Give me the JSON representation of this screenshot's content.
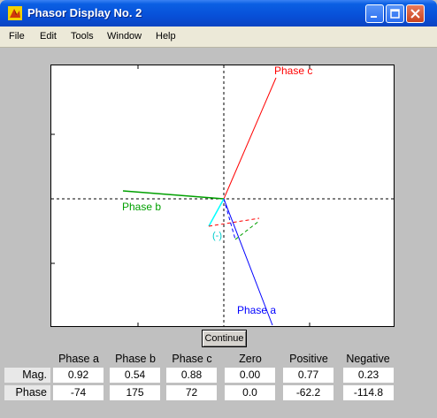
{
  "window": {
    "title": "Phasor Display No. 2"
  },
  "menu": [
    "File",
    "Edit",
    "Tools",
    "Window",
    "Help"
  ],
  "plot": {
    "labels": {
      "phase_a": "Phase a",
      "phase_b": "Phase b",
      "phase_c": "Phase c",
      "minus": "(-)"
    },
    "colors": {
      "phase_a": "#0000ff",
      "phase_b": "#00a000",
      "phase_c": "#ff0000",
      "zero": "#00ffff"
    }
  },
  "button": {
    "continue": "Continue"
  },
  "table": {
    "headers": [
      "Phase a",
      "Phase b",
      "Phase c",
      "Zero",
      "Positive",
      "Negative"
    ],
    "rows": [
      {
        "label": "Mag.",
        "values": [
          "0.92",
          "0.54",
          "0.88",
          "0.00",
          "0.77",
          "0.23"
        ]
      },
      {
        "label": "Phase",
        "values": [
          "-74",
          "175",
          "72",
          "0.0",
          "-62.2",
          "-114.8"
        ]
      }
    ]
  }
}
